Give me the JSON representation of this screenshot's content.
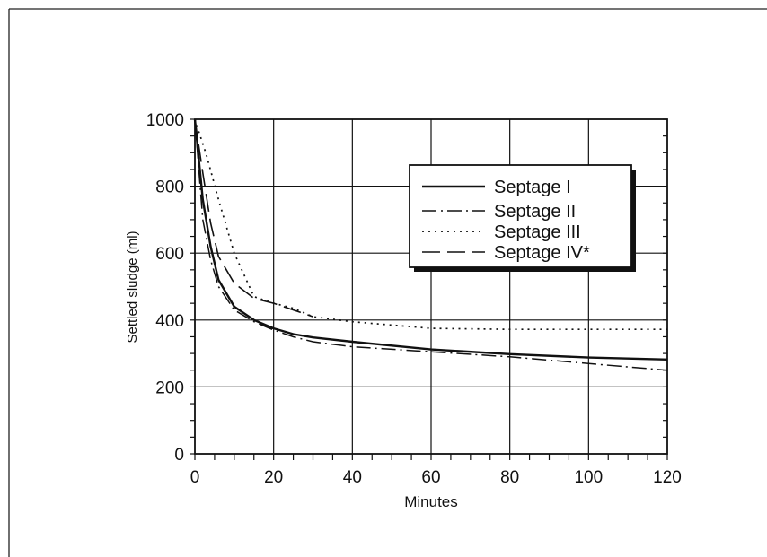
{
  "chart_data": {
    "type": "line",
    "xlabel": "Minutes",
    "ylabel": "Settled sludge (ml)",
    "xlim": [
      0,
      120
    ],
    "ylim": [
      0,
      1000
    ],
    "xticks": [
      0,
      20,
      40,
      60,
      80,
      100,
      120
    ],
    "yticks": [
      0,
      200,
      400,
      600,
      800,
      1000
    ],
    "grid": true,
    "legend_position": "upper-right",
    "series": [
      {
        "name": "Septage I",
        "style": "solid",
        "x": [
          0,
          2,
          4,
          6,
          10,
          15,
          20,
          25,
          30,
          40,
          60,
          80,
          100,
          120
        ],
        "y": [
          1000,
          760,
          620,
          520,
          440,
          400,
          375,
          358,
          348,
          335,
          312,
          298,
          288,
          282
        ]
      },
      {
        "name": "Septage II",
        "style": "dash-dot",
        "x": [
          0,
          2,
          4,
          6,
          10,
          15,
          20,
          25,
          30,
          40,
          60,
          80,
          100,
          120
        ],
        "y": [
          1000,
          700,
          580,
          500,
          430,
          395,
          370,
          350,
          335,
          320,
          305,
          290,
          270,
          250
        ]
      },
      {
        "name": "Septage III",
        "style": "dotted",
        "x": [
          0,
          3,
          6,
          10,
          15,
          20,
          25,
          30,
          40,
          60,
          80,
          100,
          120
        ],
        "y": [
          1000,
          890,
          760,
          600,
          470,
          450,
          435,
          410,
          395,
          375,
          372,
          372,
          372
        ]
      },
      {
        "name": "Septage IV*",
        "style": "long-dash",
        "x": [
          0,
          2,
          4,
          6,
          10,
          15,
          20,
          25,
          30
        ],
        "y": [
          1000,
          840,
          690,
          590,
          510,
          465,
          450,
          430,
          410
        ]
      }
    ]
  }
}
